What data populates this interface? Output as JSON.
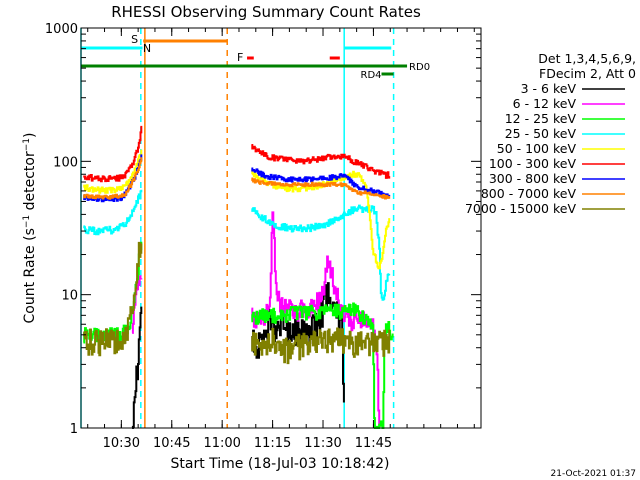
{
  "chart_data": {
    "type": "line",
    "title": "RHESSI Observing Summary Count Rates",
    "xlabel": "Start Time (18-Jul-03 10:18:42)",
    "ylabel": "Count Rate (s⁻¹ detector⁻¹)",
    "ylabel_parts": [
      "Count Rate (s",
      "−1",
      " detector",
      "−1",
      ")"
    ],
    "yscale": "log",
    "ylim": [
      1,
      1000
    ],
    "xlim_min": [
      -0.7,
      118.3
    ],
    "x_ticks": [
      {
        "t": 11.3,
        "label": "10:30"
      },
      {
        "t": 26.3,
        "label": "10:45"
      },
      {
        "t": 41.3,
        "label": "11:00"
      },
      {
        "t": 56.3,
        "label": "11:15"
      },
      {
        "t": 71.3,
        "label": "11:30"
      },
      {
        "t": 86.3,
        "label": "11:45"
      }
    ],
    "y_ticks": [
      {
        "v": 1,
        "label": "1"
      },
      {
        "v": 10,
        "label": "10"
      },
      {
        "v": 100,
        "label": "100"
      },
      {
        "v": 1000,
        "label": "1000"
      }
    ],
    "legend_header": [
      "Det 1,3,4,5,6,9,",
      "FDecim 2, Att 0"
    ],
    "series": [
      {
        "name": "3 - 6 keV",
        "color": "#000000",
        "pre": [
          [
            14.5,
            1
          ],
          [
            15,
            1.3
          ],
          [
            15.6,
            2.2
          ],
          [
            16.2,
            3.5
          ],
          [
            16.9,
            5.5
          ],
          [
            17.3,
            7
          ]
        ],
        "post": [
          [
            50,
            5
          ],
          [
            52,
            4
          ],
          [
            54,
            5
          ],
          [
            55,
            6.5
          ],
          [
            56,
            5.5
          ],
          [
            57,
            5
          ],
          [
            59,
            6
          ],
          [
            61,
            5
          ],
          [
            63,
            5.5
          ],
          [
            65,
            5.6
          ],
          [
            67,
            5.5
          ],
          [
            69,
            6
          ],
          [
            71,
            7.5
          ],
          [
            72,
            9.5
          ],
          [
            73,
            11
          ],
          [
            74,
            9.5
          ],
          [
            75,
            8
          ],
          [
            76,
            7
          ],
          [
            77,
            5.5
          ],
          [
            77.6,
            1
          ]
        ]
      },
      {
        "name": "6 - 12 keV",
        "color": "#ff00ff",
        "pre": [
          [
            14.5,
            6
          ],
          [
            15.2,
            8
          ],
          [
            16,
            11
          ],
          [
            16.8,
            13
          ],
          [
            17.3,
            14
          ]
        ],
        "post": [
          [
            50,
            7
          ],
          [
            52,
            6.6
          ],
          [
            54,
            6.6
          ],
          [
            55.5,
            10
          ],
          [
            56.3,
            48
          ],
          [
            57,
            15
          ],
          [
            58,
            9
          ],
          [
            60,
            8
          ],
          [
            62,
            7.8
          ],
          [
            64,
            7.7
          ],
          [
            66,
            7.8
          ],
          [
            68,
            8
          ],
          [
            70,
            9
          ],
          [
            71.5,
            11
          ],
          [
            72.6,
            18
          ],
          [
            73.3,
            17
          ],
          [
            74.2,
            13
          ],
          [
            75.3,
            10
          ],
          [
            77,
            7
          ],
          [
            79,
            6.2
          ],
          [
            81,
            6.5
          ],
          [
            83,
            6.3
          ],
          [
            85,
            6.3
          ],
          [
            86,
            6
          ],
          [
            86.5,
            5.6
          ],
          [
            87,
            3.8
          ],
          [
            87.5,
            2.5
          ],
          [
            88,
            1
          ]
        ]
      },
      {
        "name": "12 - 25 keV",
        "color": "#00ff00",
        "pre": [
          [
            0,
            5
          ],
          [
            4,
            5
          ],
          [
            8,
            5
          ],
          [
            11,
            5
          ],
          [
            13,
            5.5
          ],
          [
            14,
            6.5
          ],
          [
            15,
            9
          ],
          [
            16,
            14
          ],
          [
            16.8,
            22
          ],
          [
            17.3,
            28
          ]
        ],
        "post": [
          [
            50,
            6.8
          ],
          [
            54,
            7
          ],
          [
            58,
            7
          ],
          [
            62,
            7.2
          ],
          [
            66,
            7.3
          ],
          [
            70,
            7.4
          ],
          [
            74,
            7.6
          ],
          [
            78,
            7.3
          ],
          [
            80,
            7.8
          ],
          [
            82,
            7.2
          ],
          [
            84,
            6.4
          ],
          [
            86,
            5.8
          ],
          [
            86.6,
            1
          ],
          [
            89,
            1
          ],
          [
            89.5,
            4
          ],
          [
            90,
            6
          ],
          [
            92,
            5
          ]
        ]
      },
      {
        "name": "25 - 50 keV",
        "color": "#00ffff",
        "pre": [
          [
            0,
            31
          ],
          [
            4,
            30
          ],
          [
            8,
            30.5
          ],
          [
            10,
            31
          ],
          [
            12,
            33
          ],
          [
            13,
            36
          ],
          [
            14,
            40
          ],
          [
            15,
            44
          ],
          [
            16,
            50
          ],
          [
            17,
            58
          ],
          [
            17.3,
            62
          ]
        ],
        "post": [
          [
            50,
            44
          ],
          [
            52,
            40
          ],
          [
            54,
            37
          ],
          [
            56,
            35
          ],
          [
            58,
            33
          ],
          [
            60,
            32
          ],
          [
            62,
            31.5
          ],
          [
            64,
            31.2
          ],
          [
            66,
            31.5
          ],
          [
            68,
            32
          ],
          [
            70,
            33
          ],
          [
            72,
            34
          ],
          [
            74,
            36
          ],
          [
            76,
            38
          ],
          [
            78,
            40
          ],
          [
            80,
            43
          ],
          [
            82,
            44
          ],
          [
            84,
            43
          ],
          [
            86,
            44
          ],
          [
            87,
            40
          ],
          [
            88,
            22
          ],
          [
            88.5,
            10
          ],
          [
            89,
            9
          ],
          [
            90,
            12
          ],
          [
            91,
            15
          ]
        ]
      },
      {
        "name": "50 - 100 keV",
        "color": "#ffff00",
        "pre": [
          [
            0,
            64
          ],
          [
            4,
            61
          ],
          [
            8,
            61
          ],
          [
            11,
            62
          ],
          [
            12,
            64
          ],
          [
            13,
            68
          ],
          [
            14,
            75
          ],
          [
            15,
            83
          ],
          [
            16,
            95
          ],
          [
            17,
            115
          ],
          [
            17.3,
            120
          ]
        ],
        "post": [
          [
            50,
            84
          ],
          [
            52,
            75
          ],
          [
            54,
            70
          ],
          [
            56,
            67
          ],
          [
            58,
            65
          ],
          [
            60,
            63
          ],
          [
            62,
            62
          ],
          [
            64,
            62
          ],
          [
            66,
            63
          ],
          [
            68,
            64
          ],
          [
            70,
            66
          ],
          [
            72,
            68
          ],
          [
            74,
            71
          ],
          [
            76,
            74
          ],
          [
            78,
            78
          ],
          [
            80,
            80
          ],
          [
            82,
            78
          ],
          [
            84,
            68
          ],
          [
            85,
            40
          ],
          [
            86,
            22
          ],
          [
            87,
            18
          ],
          [
            88,
            16
          ],
          [
            89,
            20
          ],
          [
            90,
            30
          ],
          [
            91,
            36
          ]
        ]
      },
      {
        "name": "100 - 300 keV",
        "color": "#ff0000",
        "pre": [
          [
            0,
            77
          ],
          [
            4,
            74
          ],
          [
            8,
            74
          ],
          [
            11,
            75
          ],
          [
            12,
            78
          ],
          [
            13,
            83
          ],
          [
            14,
            90
          ],
          [
            15,
            100
          ],
          [
            16,
            120
          ],
          [
            17,
            160
          ],
          [
            17.3,
            200
          ]
        ],
        "post": [
          [
            50,
            132
          ],
          [
            52,
            118
          ],
          [
            54,
            112
          ],
          [
            56,
            107
          ],
          [
            58,
            105
          ],
          [
            60,
            103
          ],
          [
            62,
            102
          ],
          [
            64,
            101
          ],
          [
            66,
            101
          ],
          [
            68,
            102
          ],
          [
            70,
            104
          ],
          [
            72,
            106
          ],
          [
            74,
            108
          ],
          [
            76,
            110
          ],
          [
            78,
            110
          ],
          [
            80,
            100
          ],
          [
            82,
            95
          ],
          [
            84,
            92
          ],
          [
            86,
            85
          ],
          [
            88,
            82
          ],
          [
            90,
            78
          ],
          [
            91,
            80
          ]
        ]
      },
      {
        "name": "300 - 800 keV",
        "color": "#0000ff",
        "pre": [
          [
            0,
            54
          ],
          [
            4,
            52
          ],
          [
            8,
            52
          ],
          [
            11,
            53
          ],
          [
            12,
            55
          ],
          [
            13,
            60
          ],
          [
            14,
            66
          ],
          [
            15,
            74
          ],
          [
            16,
            85
          ],
          [
            17,
            105
          ],
          [
            17.3,
            115
          ]
        ],
        "post": [
          [
            50,
            90
          ],
          [
            52,
            82
          ],
          [
            54,
            78
          ],
          [
            56,
            76
          ],
          [
            58,
            75
          ],
          [
            60,
            74
          ],
          [
            62,
            73
          ],
          [
            64,
            73
          ],
          [
            66,
            73
          ],
          [
            68,
            74
          ],
          [
            70,
            74
          ],
          [
            72,
            75
          ],
          [
            74,
            76
          ],
          [
            76,
            77
          ],
          [
            78,
            78
          ],
          [
            80,
            68
          ],
          [
            82,
            64
          ],
          [
            84,
            62
          ],
          [
            86,
            60
          ],
          [
            88,
            58
          ],
          [
            90,
            56
          ],
          [
            91,
            55
          ]
        ]
      },
      {
        "name": "800 - 7000 keV",
        "color": "#ff8000",
        "pre": [
          [
            0,
            55
          ],
          [
            4,
            54
          ],
          [
            8,
            54
          ],
          [
            11,
            55
          ],
          [
            12,
            56
          ],
          [
            13,
            60
          ],
          [
            14,
            66
          ],
          [
            15,
            74
          ],
          [
            16,
            84
          ],
          [
            17,
            100
          ],
          [
            17.3,
            108
          ]
        ],
        "post": [
          [
            50,
            73
          ],
          [
            52,
            70
          ],
          [
            54,
            69
          ],
          [
            56,
            68
          ],
          [
            58,
            67
          ],
          [
            60,
            67
          ],
          [
            62,
            67
          ],
          [
            64,
            67
          ],
          [
            66,
            67
          ],
          [
            68,
            67
          ],
          [
            70,
            67
          ],
          [
            72,
            67
          ],
          [
            74,
            67
          ],
          [
            76,
            67
          ],
          [
            78,
            66
          ],
          [
            80,
            60
          ],
          [
            82,
            58
          ],
          [
            84,
            58
          ],
          [
            86,
            56
          ],
          [
            88,
            55
          ],
          [
            90,
            54
          ],
          [
            91,
            54
          ]
        ]
      },
      {
        "name": "7000 - 15000 keV",
        "color": "#808000",
        "pre": [
          [
            0,
            4.3
          ],
          [
            2,
            4.6
          ],
          [
            4,
            4.4
          ],
          [
            6,
            4.6
          ],
          [
            8,
            4.5
          ],
          [
            10,
            4.4
          ],
          [
            12,
            4.6
          ],
          [
            13,
            5
          ],
          [
            14,
            7
          ],
          [
            15,
            10
          ],
          [
            16,
            16
          ],
          [
            16.8,
            23
          ],
          [
            17.3,
            26
          ]
        ],
        "post": [
          [
            50,
            4.4
          ],
          [
            52,
            4.3
          ],
          [
            54,
            4.3
          ],
          [
            56,
            4.6
          ],
          [
            58,
            4.2
          ],
          [
            60,
            3.9
          ],
          [
            62,
            4
          ],
          [
            64,
            4.1
          ],
          [
            66,
            4.2
          ],
          [
            68,
            4.3
          ],
          [
            70,
            4.4
          ],
          [
            72,
            4.6
          ],
          [
            74,
            4.8
          ],
          [
            76,
            4.6
          ],
          [
            78,
            4.6
          ],
          [
            80,
            4.4
          ],
          [
            82,
            4.3
          ],
          [
            84,
            4.3
          ],
          [
            86,
            4.4
          ],
          [
            88,
            4.3
          ],
          [
            90,
            4.5
          ],
          [
            91,
            4.5
          ]
        ]
      }
    ],
    "annotations": {
      "saa_label": "S",
      "night_label": "N",
      "flare_label": "F",
      "rd0_label": "RD0",
      "rd4_label": "RD4",
      "night_intervals": [
        [
          -0.7,
          17.6
        ],
        [
          77.6,
          91.6
        ]
      ],
      "saa_interval": [
        17.8,
        42.8
      ],
      "flare_intervals": [
        [
          48.7,
          50.7
        ],
        [
          73.3,
          76.3
        ]
      ],
      "rd0_interval": [
        -0.7,
        96.3
      ],
      "rd4_interval": [
        88.7,
        92.3
      ],
      "solid_orange_line": 18.3,
      "dashed_orange_line": 42.8,
      "solid_cyan_lines": [
        -0.7,
        77.6
      ],
      "dashed_cyan_lines": [
        17.1,
        92.3
      ]
    }
  },
  "timestamp": "21-Oct-2021 01:37"
}
